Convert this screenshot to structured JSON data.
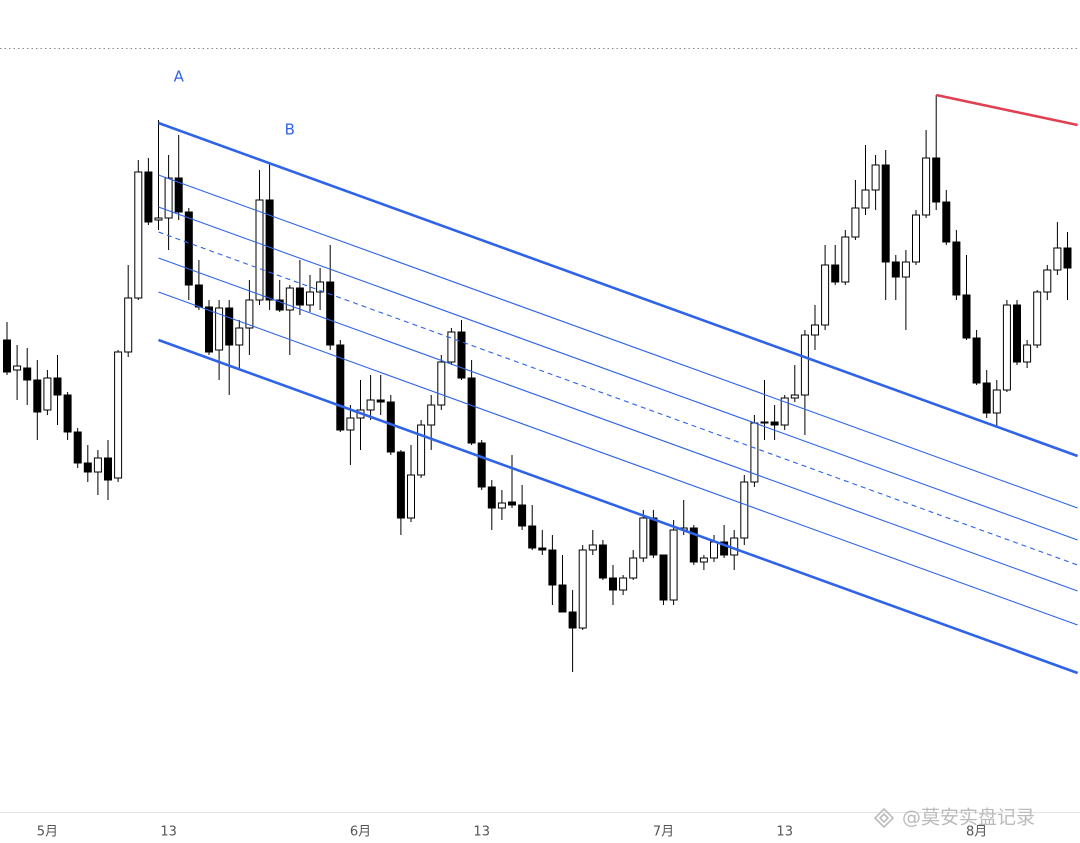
{
  "chart_data": {
    "type": "candlestick",
    "categories": [
      null,
      null,
      null,
      null,
      "5月",
      null,
      null,
      null,
      null,
      null,
      null,
      null,
      null,
      null,
      null,
      null,
      "13",
      null,
      null,
      null,
      null,
      null,
      null,
      null,
      null,
      null,
      null,
      null,
      null,
      null,
      null,
      null,
      null,
      null,
      null,
      "6月",
      null,
      null,
      null,
      null,
      null,
      null,
      null,
      null,
      null,
      null,
      null,
      "13",
      null,
      null,
      null,
      null,
      null,
      null,
      null,
      null,
      null,
      null,
      null,
      null,
      null,
      null,
      null,
      null,
      null,
      "7月",
      null,
      null,
      null,
      null,
      null,
      null,
      null,
      null,
      null,
      null,
      null,
      "13",
      null,
      null,
      null,
      null,
      null,
      null,
      null,
      null,
      null,
      null,
      null,
      null,
      null,
      null,
      null,
      null,
      null,
      null,
      "8月",
      null,
      null,
      null,
      null,
      null,
      null,
      null,
      null,
      null
    ],
    "open": [
      460,
      430,
      432,
      420,
      390,
      422,
      405,
      368,
      337,
      328,
      342,
      322,
      448,
      502,
      628,
      580,
      582,
      622,
      588,
      515,
      493,
      450,
      492,
      455,
      472,
      500,
      600,
      500,
      490,
      512,
      495,
      508,
      518,
      455,
      370,
      382,
      390,
      400,
      398,
      348,
      282,
      325,
      375,
      395,
      438,
      468,
      422,
      357,
      313,
      292,
      298,
      295,
      274,
      252,
      250,
      215,
      188,
      172,
      250,
      255,
      222,
      210,
      222,
      242,
      282,
      245,
      200,
      270,
      272,
      238,
      242,
      258,
      245,
      262,
      318,
      377,
      378,
      375,
      402,
      405,
      465,
      475,
      535,
      518,
      563,
      592,
      610,
      635,
      538,
      523,
      538,
      585,
      642,
      598,
      558,
      505,
      462,
      417,
      387,
      410,
      495,
      438,
      455,
      508,
      530,
      552
    ],
    "high": [
      478,
      455,
      452,
      440,
      430,
      445,
      408,
      372,
      355,
      350,
      360,
      450,
      535,
      640,
      642,
      680,
      645,
      665,
      592,
      540,
      500,
      500,
      500,
      480,
      520,
      630,
      638,
      520,
      515,
      540,
      525,
      532,
      555,
      460,
      395,
      420,
      425,
      425,
      405,
      350,
      355,
      380,
      405,
      445,
      472,
      480,
      440,
      360,
      320,
      310,
      345,
      315,
      295,
      270,
      265,
      245,
      210,
      255,
      270,
      260,
      235,
      225,
      250,
      290,
      290,
      245,
      280,
      300,
      275,
      245,
      265,
      275,
      270,
      325,
      385,
      420,
      395,
      405,
      435,
      470,
      495,
      555,
      555,
      570,
      620,
      655,
      645,
      650,
      545,
      550,
      590,
      670,
      705,
      610,
      570,
      545,
      470,
      430,
      420,
      500,
      500,
      460,
      510,
      535,
      578,
      568
    ],
    "low": [
      425,
      400,
      395,
      360,
      385,
      375,
      360,
      332,
      318,
      305,
      300,
      318,
      443,
      500,
      575,
      570,
      550,
      580,
      500,
      490,
      445,
      420,
      405,
      430,
      445,
      495,
      490,
      488,
      445,
      485,
      488,
      490,
      450,
      368,
      335,
      350,
      380,
      385,
      345,
      265,
      278,
      322,
      350,
      390,
      435,
      420,
      355,
      310,
      270,
      280,
      292,
      270,
      250,
      245,
      195,
      188,
      128,
      170,
      245,
      220,
      195,
      205,
      220,
      238,
      242,
      195,
      195,
      265,
      235,
      230,
      238,
      242,
      230,
      255,
      313,
      360,
      360,
      370,
      398,
      365,
      450,
      470,
      515,
      515,
      560,
      585,
      590,
      500,
      500,
      470,
      535,
      582,
      590,
      555,
      500,
      460,
      415,
      382,
      372,
      408,
      435,
      432,
      452,
      500,
      525,
      500
    ],
    "close": [
      428,
      434,
      420,
      388,
      422,
      405,
      368,
      337,
      328,
      342,
      320,
      448,
      502,
      628,
      578,
      582,
      622,
      588,
      515,
      493,
      448,
      492,
      455,
      472,
      500,
      600,
      500,
      490,
      512,
      495,
      508,
      518,
      455,
      370,
      382,
      390,
      400,
      398,
      348,
      282,
      325,
      375,
      395,
      438,
      468,
      422,
      357,
      313,
      292,
      297,
      295,
      274,
      252,
      250,
      215,
      188,
      172,
      250,
      255,
      222,
      210,
      222,
      242,
      282,
      245,
      200,
      270,
      272,
      238,
      242,
      258,
      245,
      262,
      318,
      377,
      378,
      375,
      402,
      405,
      465,
      475,
      535,
      518,
      563,
      592,
      610,
      635,
      538,
      523,
      538,
      585,
      642,
      598,
      558,
      505,
      462,
      417,
      387,
      410,
      495,
      438,
      455,
      508,
      530,
      552,
      532
    ],
    "ylim": [
      0,
      800
    ],
    "lines": [
      {
        "x": [
          15,
          106
        ],
        "y": [
          677,
          344
        ],
        "color": "#2f63e8",
        "style": "thick"
      },
      {
        "x": [
          15,
          106
        ],
        "y": [
          625,
          292
        ],
        "color": "#2f63e8",
        "style": "thin"
      },
      {
        "x": [
          15,
          106
        ],
        "y": [
          593,
          260
        ],
        "color": "#2f63e8",
        "style": "thin"
      },
      {
        "x": [
          15,
          106
        ],
        "y": [
          568,
          235
        ],
        "color": "#2f63e8",
        "style": "dashed"
      },
      {
        "x": [
          15,
          106
        ],
        "y": [
          542,
          209
        ],
        "color": "#2f63e8",
        "style": "thin"
      },
      {
        "x": [
          15,
          106
        ],
        "y": [
          508,
          175
        ],
        "color": "#2f63e8",
        "style": "thin"
      },
      {
        "x": [
          15,
          106
        ],
        "y": [
          460,
          127
        ],
        "color": "#2f63e8",
        "style": "thick"
      },
      {
        "x": [
          92,
          106
        ],
        "y": [
          705,
          675
        ],
        "color": "#e0404f",
        "style": "thick"
      }
    ],
    "annotations": [
      {
        "text": "A",
        "x": 17,
        "y": 708
      },
      {
        "text": "B",
        "x": 28,
        "y": 655
      }
    ],
    "watermark": "@莫安实盘记录"
  }
}
